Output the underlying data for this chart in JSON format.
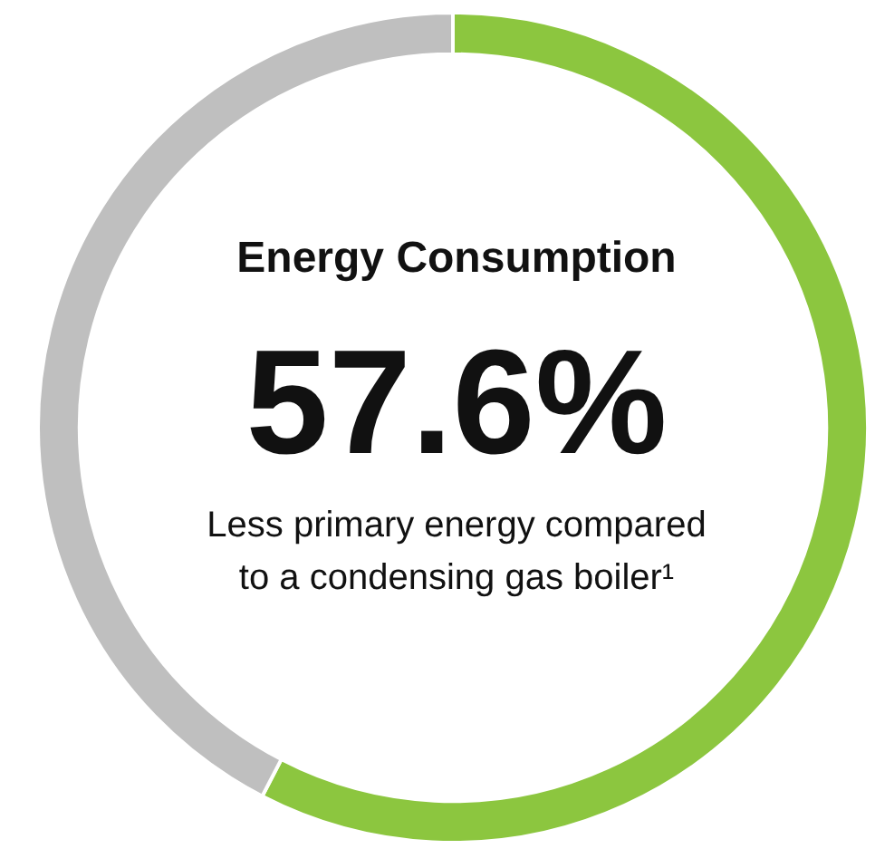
{
  "chart_data": {
    "type": "donut",
    "title": "Energy Consumption",
    "categories": [
      null,
      null
    ],
    "values": [
      57.6,
      42.4
    ],
    "colors": [
      "#8cc63f",
      "#bfbfbf"
    ],
    "value_labels": [
      "57.6%",
      null
    ],
    "annotations": [
      "Less primary energy compared to a condensing gas boiler¹"
    ]
  }
}
